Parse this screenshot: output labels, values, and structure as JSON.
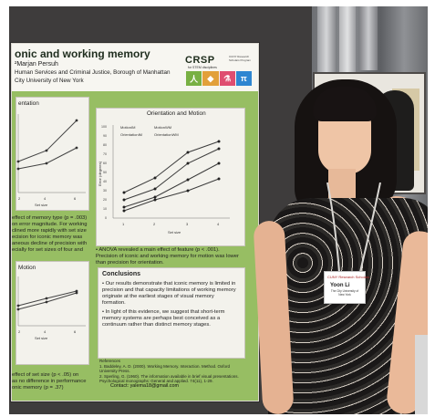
{
  "poster": {
    "title": "onic and working memory",
    "authors": "²Marjan Persuh",
    "affiliation_line1": "Human Services and Criminal Justice, Borough of Manhattan",
    "affiliation_line2": "City University of New York",
    "logo": {
      "name": "CRSP",
      "sub": "for STEM disciplines",
      "side": "CUNY Research Scholars Program"
    }
  },
  "panels": {
    "orientation_label": "entation",
    "orientation_motion_title": "Orientation and Motion",
    "motion_label": "Motion",
    "legend": [
      "MotionIM",
      "MotionWM",
      "OrientationIM",
      "OrientationWM"
    ],
    "x_ticks": [
      "2",
      "4",
      "6"
    ],
    "x_ticks_right": [
      "1",
      "2",
      "3",
      "4"
    ],
    "y_ticks": [
      "0",
      "10",
      "20",
      "30",
      "40",
      "50",
      "60",
      "70",
      "80",
      "90",
      "100"
    ],
    "x_label": "Set size",
    "x_label_right": "Set size",
    "y_label": "Error (degrees)"
  },
  "texts": {
    "left_text_1": "effect of memory type (p = .003)",
    "left_text_2": "on error magnitude. For working",
    "left_text_3": "clined more rapidly with set size",
    "left_text_4": "ecision for iconic memory was",
    "left_text_5": "aneous decline of precision with",
    "left_text_6": "ecially for set sizes of four and",
    "anova": "• ANOVA revealed a main effect of feature (p < .001). Precision of iconic and working memory for motion was lower than precision for orientation.",
    "conclusions_title": "Conclusions",
    "conclusion_1": "• Our results demonstrate that iconic memory is limited in precision and that capacity limitations of working memory originate at the earliest stages of visual memory formation.",
    "conclusion_2": "• In light of this evidence, we suggest that short-term memory systems are perhaps best conceived as a continuum rather than distinct memory stages.",
    "references_title": "References",
    "reference_1": "1. Baddeley, A. D. (2000). Working Memory. Interaction. Method. Oxford University Press.",
    "reference_2": "2. Sperling, G. (1960). The information available in brief visual presentations. Psychological monographs: General and applied. 74(11), 1-29.",
    "bottom_left_1": "effect of set size (p < .05) on",
    "bottom_left_2": "as no difference in performance",
    "bottom_left_3": "onic memory (p = .37)",
    "contact": "Contact: yalema18@gmail.com"
  },
  "badge": {
    "top": "CUNY Research Scholars",
    "name": "Yoon Li",
    "sub": "The City University of New York"
  },
  "colors": {
    "poster_green": "#97be63",
    "poster_paper": "#f7f6f1",
    "wall": "#4a4746"
  }
}
